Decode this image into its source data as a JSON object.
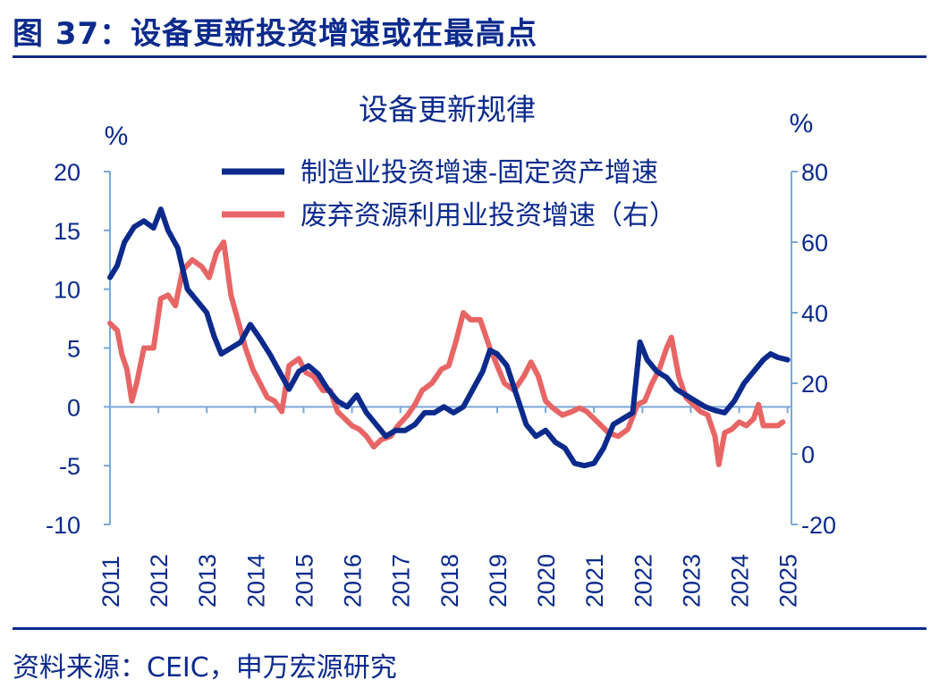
{
  "figure": {
    "title": "图 37：设备更新投资增速或在最高点",
    "source": "资料来源：CEIC，申万宏源研究"
  },
  "colors": {
    "brand": "#0b2a8c",
    "axis": "#7aa8d6",
    "series_1": "#0b2a8c",
    "series_2": "#e86565"
  },
  "chart_data": {
    "type": "line",
    "title": "设备更新规律",
    "y_left": {
      "unit": "%",
      "range": [
        -10,
        20
      ],
      "ticks": [
        20,
        15,
        10,
        5,
        0,
        -5,
        -10
      ]
    },
    "y_right": {
      "unit": "%",
      "range": [
        -20,
        80
      ],
      "ticks": [
        80,
        60,
        40,
        20,
        0,
        -20
      ]
    },
    "x_ticks": [
      "2011",
      "2012",
      "2013",
      "2014",
      "2015",
      "2016",
      "2017",
      "2018",
      "2019",
      "2020",
      "2021",
      "2022",
      "2023",
      "2024",
      "2025"
    ],
    "legend_position": "top-center",
    "series": [
      {
        "name": "制造业投资增速-固定资产增速",
        "axis": "left",
        "color": "#0b2a8c",
        "points": [
          [
            2011.0,
            11.0
          ],
          [
            2011.15,
            12.0
          ],
          [
            2011.3,
            14.0
          ],
          [
            2011.5,
            15.3
          ],
          [
            2011.7,
            15.8
          ],
          [
            2011.9,
            15.2
          ],
          [
            2012.05,
            16.8
          ],
          [
            2012.2,
            15.0
          ],
          [
            2012.4,
            13.5
          ],
          [
            2012.6,
            10.0
          ],
          [
            2012.8,
            9.0
          ],
          [
            2013.0,
            8.0
          ],
          [
            2013.15,
            6.0
          ],
          [
            2013.3,
            4.5
          ],
          [
            2013.5,
            5.0
          ],
          [
            2013.7,
            5.5
          ],
          [
            2013.9,
            7.0
          ],
          [
            2014.1,
            5.8
          ],
          [
            2014.3,
            4.5
          ],
          [
            2014.5,
            3.0
          ],
          [
            2014.7,
            1.5
          ],
          [
            2014.9,
            3.0
          ],
          [
            2015.1,
            3.5
          ],
          [
            2015.3,
            2.8
          ],
          [
            2015.5,
            1.5
          ],
          [
            2015.7,
            0.5
          ],
          [
            2015.9,
            0.0
          ],
          [
            2016.1,
            1.0
          ],
          [
            2016.3,
            -0.5
          ],
          [
            2016.5,
            -1.5
          ],
          [
            2016.7,
            -2.5
          ],
          [
            2016.9,
            -2.0
          ],
          [
            2017.1,
            -2.0
          ],
          [
            2017.3,
            -1.5
          ],
          [
            2017.5,
            -0.5
          ],
          [
            2017.7,
            -0.5
          ],
          [
            2017.9,
            0.0
          ],
          [
            2018.1,
            -0.5
          ],
          [
            2018.3,
            0.0
          ],
          [
            2018.5,
            1.5
          ],
          [
            2018.7,
            3.0
          ],
          [
            2018.85,
            4.8
          ],
          [
            2019.0,
            4.5
          ],
          [
            2019.2,
            3.5
          ],
          [
            2019.4,
            1.0
          ],
          [
            2019.6,
            -1.5
          ],
          [
            2019.8,
            -2.5
          ],
          [
            2020.0,
            -2.0
          ],
          [
            2020.2,
            -3.0
          ],
          [
            2020.4,
            -3.5
          ],
          [
            2020.6,
            -4.8
          ],
          [
            2020.8,
            -5.0
          ],
          [
            2021.0,
            -4.8
          ],
          [
            2021.2,
            -3.5
          ],
          [
            2021.4,
            -1.5
          ],
          [
            2021.6,
            -1.0
          ],
          [
            2021.8,
            -0.5
          ],
          [
            2021.95,
            5.5
          ],
          [
            2022.1,
            4.0
          ],
          [
            2022.3,
            3.0
          ],
          [
            2022.5,
            2.5
          ],
          [
            2022.7,
            1.5
          ],
          [
            2022.9,
            1.0
          ],
          [
            2023.1,
            0.5
          ],
          [
            2023.3,
            0.0
          ],
          [
            2023.5,
            -0.3
          ],
          [
            2023.7,
            -0.5
          ],
          [
            2023.9,
            0.5
          ],
          [
            2024.1,
            2.0
          ],
          [
            2024.3,
            3.0
          ],
          [
            2024.5,
            4.0
          ],
          [
            2024.65,
            4.5
          ],
          [
            2024.8,
            4.2
          ],
          [
            2025.0,
            4.0
          ]
        ]
      },
      {
        "name": "废弃资源利用业投资增速（右）",
        "axis": "right",
        "color": "#e86565",
        "points": [
          [
            2011.0,
            37.0
          ],
          [
            2011.15,
            35.0
          ],
          [
            2011.25,
            28.0
          ],
          [
            2011.35,
            24.0
          ],
          [
            2011.45,
            15.0
          ],
          [
            2011.55,
            20.0
          ],
          [
            2011.7,
            30.0
          ],
          [
            2011.9,
            30.0
          ],
          [
            2012.05,
            44.0
          ],
          [
            2012.2,
            45.0
          ],
          [
            2012.35,
            42.0
          ],
          [
            2012.5,
            52.0
          ],
          [
            2012.7,
            55.0
          ],
          [
            2012.9,
            53.0
          ],
          [
            2013.05,
            50.0
          ],
          [
            2013.2,
            57.0
          ],
          [
            2013.35,
            60.0
          ],
          [
            2013.5,
            45.0
          ],
          [
            2013.6,
            40.0
          ],
          [
            2013.8,
            30.0
          ],
          [
            2013.95,
            24.0
          ],
          [
            2014.1,
            20.0
          ],
          [
            2014.25,
            16.0
          ],
          [
            2014.4,
            15.0
          ],
          [
            2014.55,
            12.0
          ],
          [
            2014.7,
            25.0
          ],
          [
            2014.9,
            27.0
          ],
          [
            2015.05,
            23.0
          ],
          [
            2015.2,
            22.0
          ],
          [
            2015.4,
            18.0
          ],
          [
            2015.55,
            18.0
          ],
          [
            2015.7,
            12.0
          ],
          [
            2015.85,
            10.0
          ],
          [
            2016.0,
            8.0
          ],
          [
            2016.15,
            7.0
          ],
          [
            2016.3,
            5.0
          ],
          [
            2016.45,
            2.0
          ],
          [
            2016.6,
            4.0
          ],
          [
            2016.8,
            5.0
          ],
          [
            2016.95,
            8.0
          ],
          [
            2017.15,
            11.0
          ],
          [
            2017.3,
            14.0
          ],
          [
            2017.45,
            18.0
          ],
          [
            2017.65,
            20.0
          ],
          [
            2017.85,
            24.0
          ],
          [
            2018.0,
            25.0
          ],
          [
            2018.15,
            32.0
          ],
          [
            2018.3,
            40.0
          ],
          [
            2018.45,
            38.0
          ],
          [
            2018.65,
            38.0
          ],
          [
            2018.85,
            30.0
          ],
          [
            2019.0,
            25.0
          ],
          [
            2019.15,
            20.0
          ],
          [
            2019.35,
            18.0
          ],
          [
            2019.55,
            22.0
          ],
          [
            2019.7,
            26.0
          ],
          [
            2019.85,
            22.0
          ],
          [
            2020.0,
            15.0
          ],
          [
            2020.15,
            13.0
          ],
          [
            2020.35,
            11.0
          ],
          [
            2020.55,
            12.0
          ],
          [
            2020.7,
            13.0
          ],
          [
            2020.85,
            12.0
          ],
          [
            2021.0,
            10.0
          ],
          [
            2021.15,
            8.0
          ],
          [
            2021.3,
            6.0
          ],
          [
            2021.5,
            5.0
          ],
          [
            2021.7,
            7.0
          ],
          [
            2021.9,
            14.0
          ],
          [
            2022.05,
            15.0
          ],
          [
            2022.2,
            20.0
          ],
          [
            2022.35,
            24.0
          ],
          [
            2022.5,
            30.0
          ],
          [
            2022.6,
            33.0
          ],
          [
            2022.75,
            22.0
          ],
          [
            2022.9,
            16.0
          ],
          [
            2023.05,
            14.0
          ],
          [
            2023.2,
            12.0
          ],
          [
            2023.35,
            11.0
          ],
          [
            2023.5,
            5.0
          ],
          [
            2023.58,
            -3.0
          ],
          [
            2023.7,
            6.0
          ],
          [
            2023.85,
            7.0
          ],
          [
            2024.0,
            9.0
          ],
          [
            2024.15,
            8.0
          ],
          [
            2024.3,
            10.0
          ],
          [
            2024.4,
            14.0
          ],
          [
            2024.5,
            8.0
          ],
          [
            2024.65,
            8.0
          ],
          [
            2024.8,
            8.0
          ],
          [
            2024.9,
            9.0
          ]
        ]
      }
    ]
  }
}
